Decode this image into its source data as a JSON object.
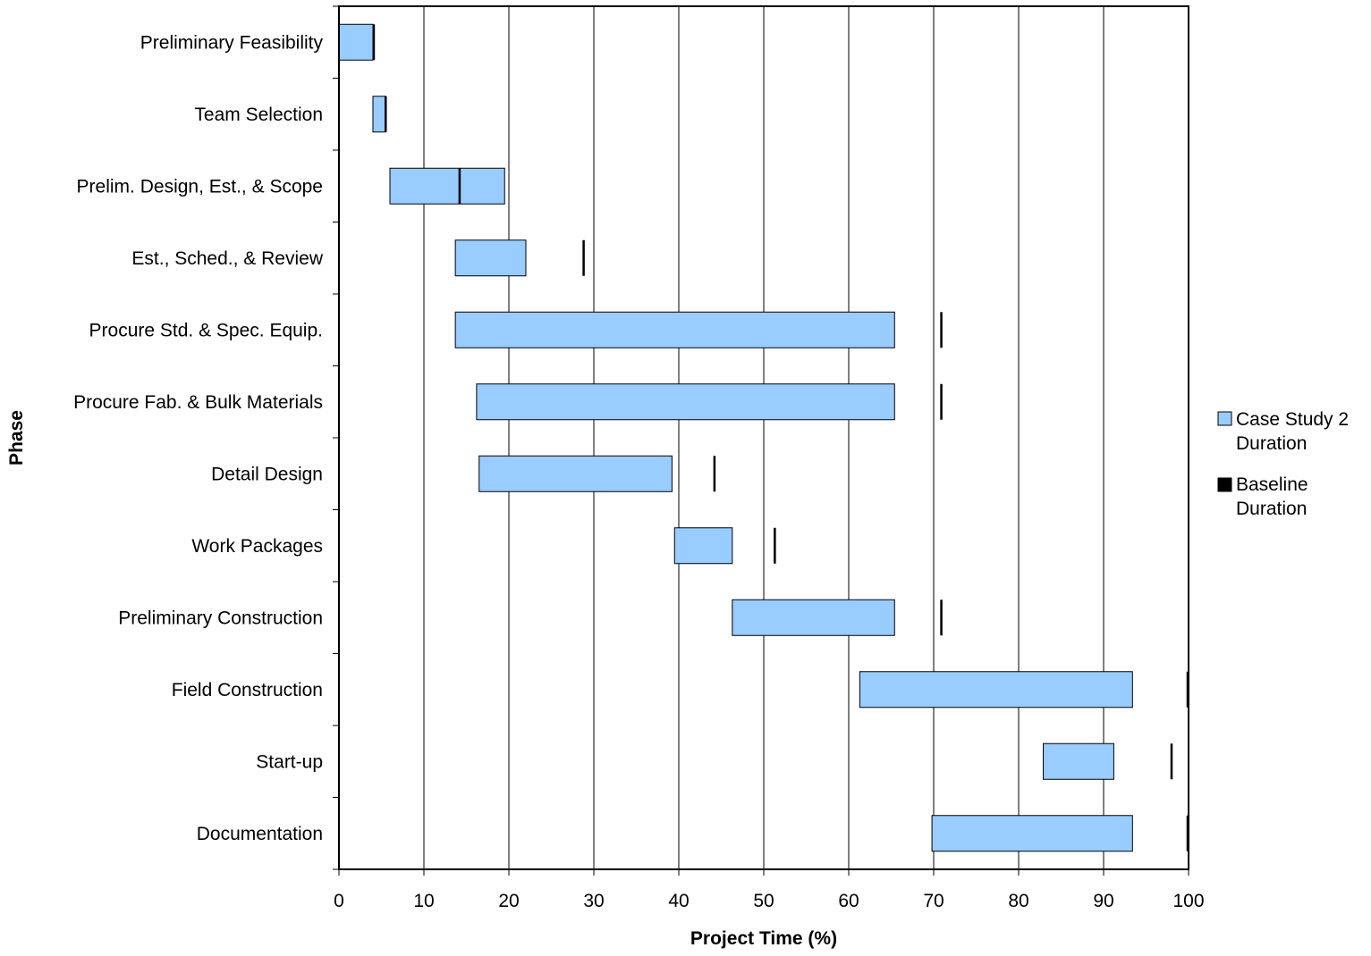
{
  "chart_data": {
    "type": "bar",
    "orientation": "horizontal",
    "categories": [
      "Preliminary Feasibility",
      "Team Selection",
      "Prelim. Design, Est., & Scope",
      "Est., Sched., & Review",
      "Procure Std. & Spec. Equip.",
      "Procure Fab. & Bulk Materials",
      "Detail Design",
      "Work Packages",
      "Preliminary Construction",
      "Field Construction",
      "Start-up",
      "Documentation"
    ],
    "series": [
      {
        "name": "Case Study 2 Duration",
        "color": "#99ccff",
        "ranges": [
          [
            0,
            4
          ],
          [
            4,
            5.5
          ],
          [
            6,
            19.5
          ],
          [
            13.7,
            22
          ],
          [
            13.7,
            65.4
          ],
          [
            16.2,
            65.4
          ],
          [
            16.5,
            39.2
          ],
          [
            39.5,
            46.3
          ],
          [
            46.3,
            65.4
          ],
          [
            61.3,
            93.4
          ],
          [
            82.9,
            91.2
          ],
          [
            69.8,
            93.4
          ]
        ]
      },
      {
        "name": "Baseline Duration",
        "color": "#000000",
        "values": [
          4.1,
          5.5,
          14.2,
          28.8,
          70.9,
          70.9,
          44.2,
          51.3,
          70.9,
          100,
          98,
          100
        ]
      }
    ],
    "x_ticks": [
      "0",
      "10",
      "20",
      "30",
      "40",
      "50",
      "60",
      "70",
      "80",
      "90",
      "100"
    ],
    "xlim": [
      0,
      100
    ],
    "xlabel": "Project Time (%)",
    "ylabel": "Phase",
    "grid": "vertical",
    "legend": {
      "position": "right",
      "entries": [
        {
          "line1": "Case Study 2",
          "line2": "Duration",
          "color": "#99ccff"
        },
        {
          "line1": "Baseline",
          "line2": "Duration",
          "color": "#000000"
        }
      ]
    }
  }
}
